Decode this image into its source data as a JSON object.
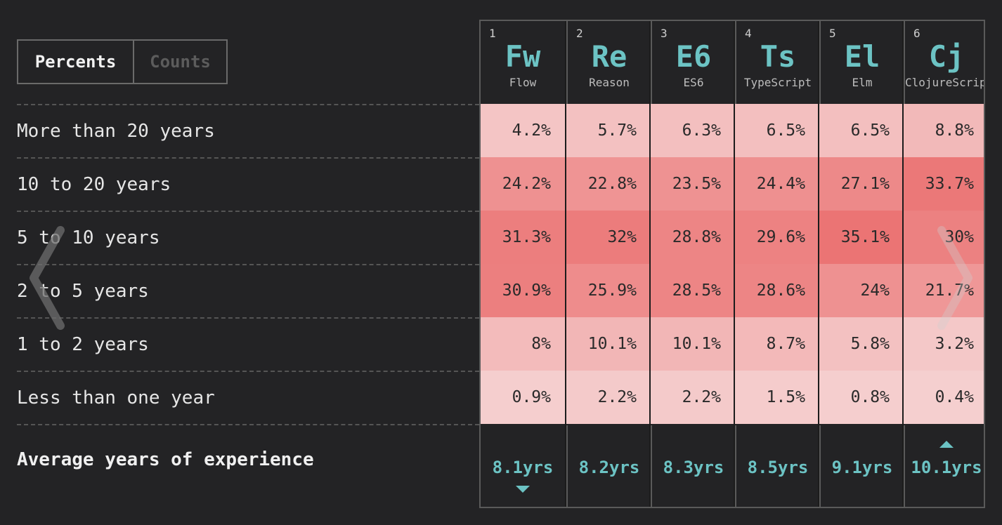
{
  "toggle": {
    "active_label": "Percents",
    "inactive_label": "Counts"
  },
  "rows": [
    "More than 20 years",
    "10 to 20 years",
    "5 to 10 years",
    "2 to 5 years",
    "1 to 2 years",
    "Less than one year"
  ],
  "average_label": "Average years of experience",
  "columns": [
    {
      "num": "1",
      "abbr": "Fw",
      "name": "Flow",
      "avg": "8.1yrs",
      "marker": "down",
      "cells": [
        "4.2%",
        "24.2%",
        "31.3%",
        "30.9%",
        "8%",
        "0.9%"
      ],
      "levels": [
        4.2,
        24.2,
        31.3,
        30.9,
        8,
        0.9
      ]
    },
    {
      "num": "2",
      "abbr": "Re",
      "name": "Reason",
      "avg": "8.2yrs",
      "marker": "",
      "cells": [
        "5.7%",
        "22.8%",
        "32%",
        "25.9%",
        "10.1%",
        "2.2%"
      ],
      "levels": [
        5.7,
        22.8,
        32,
        25.9,
        10.1,
        2.2
      ]
    },
    {
      "num": "3",
      "abbr": "E6",
      "name": "ES6",
      "avg": "8.3yrs",
      "marker": "",
      "cells": [
        "6.3%",
        "23.5%",
        "28.8%",
        "28.5%",
        "10.1%",
        "2.2%"
      ],
      "levels": [
        6.3,
        23.5,
        28.8,
        28.5,
        10.1,
        2.2
      ]
    },
    {
      "num": "4",
      "abbr": "Ts",
      "name": "TypeScript",
      "avg": "8.5yrs",
      "marker": "",
      "cells": [
        "6.5%",
        "24.4%",
        "29.6%",
        "28.6%",
        "8.7%",
        "1.5%"
      ],
      "levels": [
        6.5,
        24.4,
        29.6,
        28.6,
        8.7,
        1.5
      ]
    },
    {
      "num": "5",
      "abbr": "El",
      "name": "Elm",
      "avg": "9.1yrs",
      "marker": "",
      "cells": [
        "6.5%",
        "27.1%",
        "35.1%",
        "24%",
        "5.8%",
        "0.8%"
      ],
      "levels": [
        6.5,
        27.1,
        35.1,
        24,
        5.8,
        0.8
      ]
    },
    {
      "num": "6",
      "abbr": "Cj",
      "name": "ClojureScript",
      "avg": "10.1yrs",
      "marker": "up",
      "cells": [
        "8.8%",
        "33.7%",
        "30%",
        "21.7%",
        "3.2%",
        "0.4%"
      ],
      "levels": [
        8.8,
        33.7,
        30,
        21.7,
        3.2,
        0.4
      ]
    }
  ],
  "colors": {
    "accent": "#6cc3c4",
    "heat_low": "#f5d0d0",
    "heat_high": "#eb7474"
  }
}
